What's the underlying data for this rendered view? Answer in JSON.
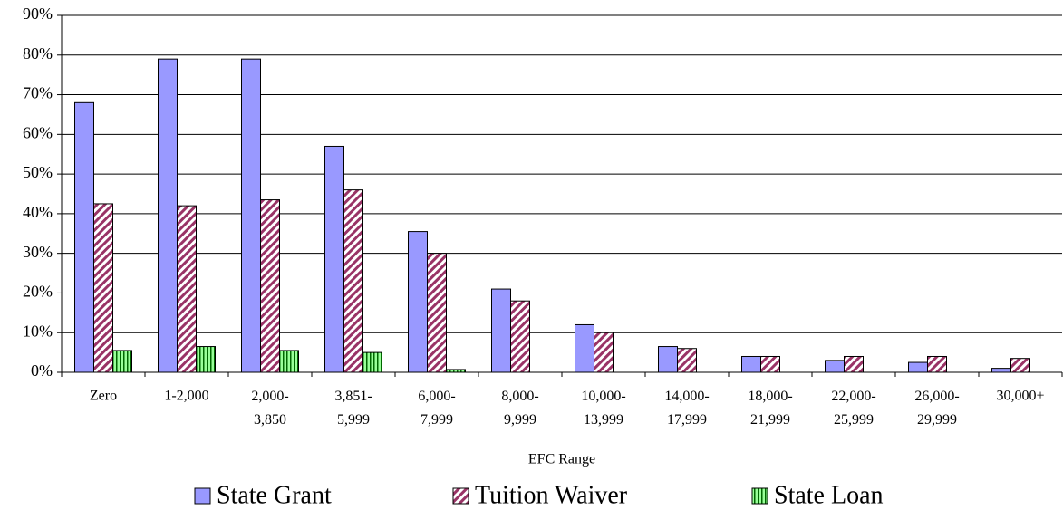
{
  "chart_data": {
    "type": "bar",
    "x_label": "EFC Range",
    "categories": [
      "Zero",
      "1-2,000",
      "2,000-\n3,850",
      "3,851-\n5,999",
      "6,000-\n7,999",
      "8,000-\n9,999",
      "10,000-\n13,999",
      "14,000-\n17,999",
      "18,000-\n21,999",
      "22,000-\n25,999",
      "26,000-\n29,999",
      "30,000+"
    ],
    "series": [
      {
        "name": "State Grant",
        "color": "#9999ff",
        "pattern": "solid",
        "values": [
          68,
          79,
          79,
          57,
          35.5,
          21,
          12,
          6.5,
          4,
          3,
          2.5,
          1
        ]
      },
      {
        "name": "Tuition Waiver",
        "color": "#993366",
        "pattern": "diagonal",
        "values": [
          42.5,
          42,
          43.5,
          46,
          30,
          18,
          10,
          6,
          4,
          4,
          4,
          3.5
        ]
      },
      {
        "name": "State Loan",
        "color": "#99ff99",
        "pattern": "vertical",
        "values": [
          5.5,
          6.5,
          5.5,
          5,
          0.7,
          0,
          0,
          0,
          0,
          0,
          0,
          0
        ]
      }
    ],
    "ylim": [
      0,
      90
    ],
    "yticks": [
      {
        "value": 0,
        "label": "0%"
      },
      {
        "value": 10,
        "label": "10%"
      },
      {
        "value": 20,
        "label": "20%"
      },
      {
        "value": 30,
        "label": "30%"
      },
      {
        "value": 40,
        "label": "40%"
      },
      {
        "value": 50,
        "label": "50%"
      },
      {
        "value": 60,
        "label": "60%"
      },
      {
        "value": 70,
        "label": "70%"
      },
      {
        "value": 80,
        "label": "80%"
      },
      {
        "value": 90,
        "label": "90%"
      }
    ],
    "grid": true,
    "legend": "bottom"
  }
}
